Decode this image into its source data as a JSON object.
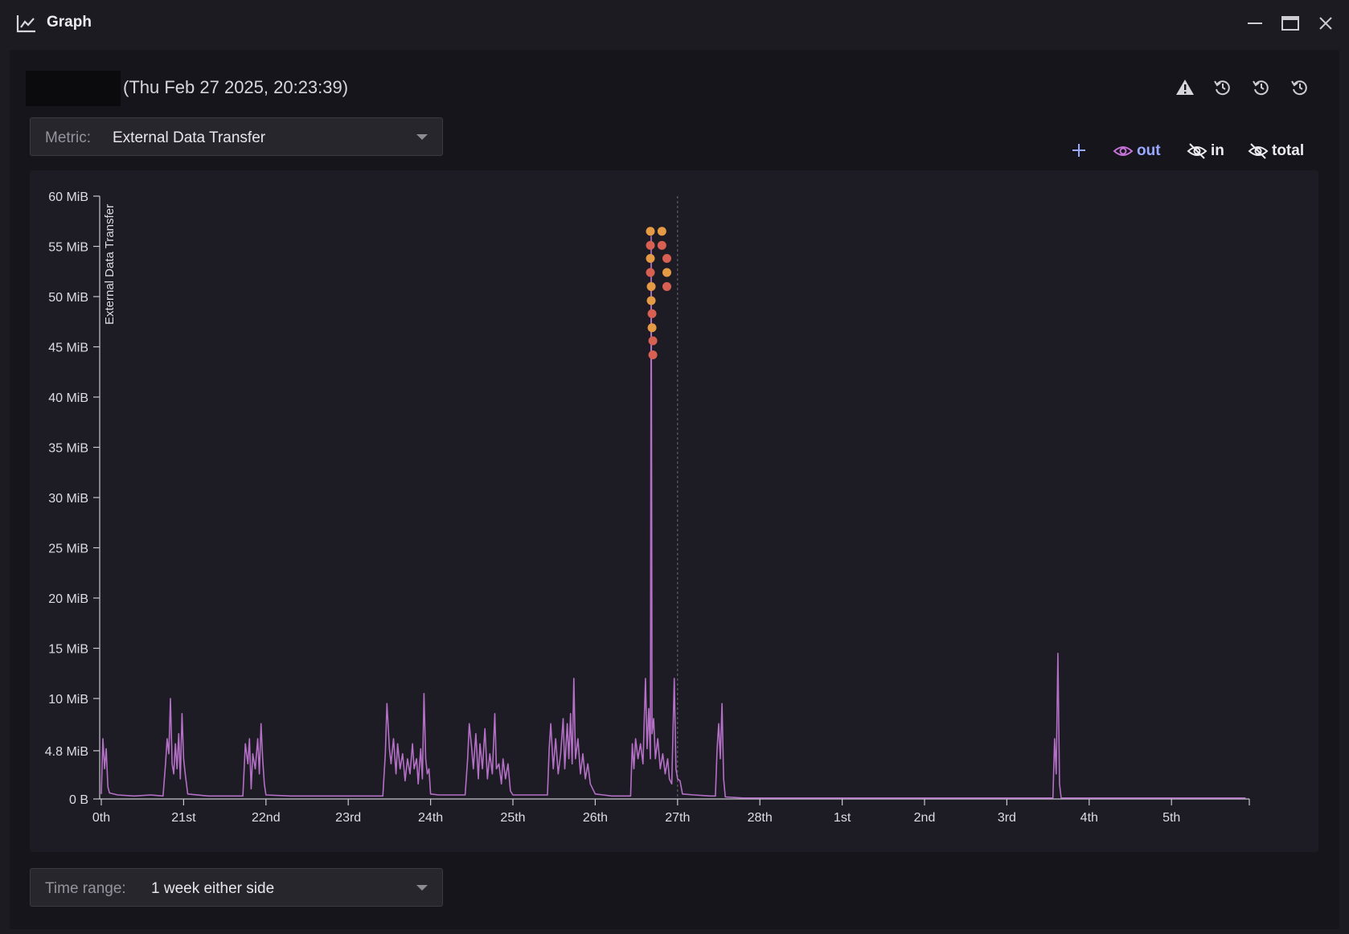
{
  "window": {
    "title": "Graph",
    "icon": "line-chart-icon",
    "controls": [
      "minimize-icon",
      "maximize-icon",
      "close-icon"
    ]
  },
  "header": {
    "timestamp": "(Thu Feb 27 2025, 20:23:39)",
    "icons": [
      "warning-icon",
      "history-icon",
      "history-icon",
      "history-icon"
    ]
  },
  "metric_select": {
    "label": "Metric:",
    "value": "External Data Transfer"
  },
  "legend": {
    "add_icon": "plus-icon",
    "items": [
      {
        "label": "out",
        "visible": true,
        "color": "#9aa8ff",
        "icon": "eye-icon"
      },
      {
        "label": "in",
        "visible": false,
        "color": "#ecebf0",
        "icon": "eye-off-icon"
      },
      {
        "label": "total",
        "visible": false,
        "color": "#ecebf0",
        "icon": "eye-off-icon"
      }
    ]
  },
  "time_range_select": {
    "label": "Time range:",
    "value": "1 week either side"
  },
  "colors": {
    "series": "#b46fc6",
    "marker_orange": "#e59a45",
    "marker_red": "#d86052",
    "axis": "#c9c7cf",
    "background": "#1d1c24"
  },
  "chart_data": {
    "type": "line",
    "ylabel": "External Data Transfer",
    "xlabel": "",
    "y_ticks": [
      {
        "value": 0,
        "label": "0 B"
      },
      {
        "value": 4.8,
        "label": "4.8 MiB"
      },
      {
        "value": 10,
        "label": "10 MiB"
      },
      {
        "value": 15,
        "label": "15 MiB"
      },
      {
        "value": 20,
        "label": "20 MiB"
      },
      {
        "value": 25,
        "label": "25 MiB"
      },
      {
        "value": 30,
        "label": "30 MiB"
      },
      {
        "value": 35,
        "label": "35 MiB"
      },
      {
        "value": 40,
        "label": "40 MiB"
      },
      {
        "value": 45,
        "label": "45 MiB"
      },
      {
        "value": 50,
        "label": "50 MiB"
      },
      {
        "value": 55,
        "label": "55 MiB"
      },
      {
        "value": 60,
        "label": "60 MiB"
      }
    ],
    "ylim": [
      0,
      60
    ],
    "x_ticks": [
      {
        "day": 20,
        "label": "0th"
      },
      {
        "day": 21,
        "label": "21st"
      },
      {
        "day": 22,
        "label": "22nd"
      },
      {
        "day": 23,
        "label": "23rd"
      },
      {
        "day": 24,
        "label": "24th"
      },
      {
        "day": 25,
        "label": "25th"
      },
      {
        "day": 26,
        "label": "26th"
      },
      {
        "day": 27,
        "label": "27th"
      },
      {
        "day": 28,
        "label": "28th"
      },
      {
        "day": 29,
        "label": "1st"
      },
      {
        "day": 30,
        "label": "2nd"
      },
      {
        "day": 31,
        "label": "3rd"
      },
      {
        "day": 32,
        "label": "4th"
      },
      {
        "day": 33,
        "label": "5th"
      }
    ],
    "xlim": [
      20,
      33.9
    ],
    "cursor_day": 27.0,
    "grid": false,
    "series": [
      {
        "name": "out",
        "points": [
          [
            20.0,
            0.5
          ],
          [
            20.02,
            6.0
          ],
          [
            20.04,
            3.0
          ],
          [
            20.06,
            5.0
          ],
          [
            20.08,
            1.2
          ],
          [
            20.1,
            0.6
          ],
          [
            20.2,
            0.4
          ],
          [
            20.4,
            0.3
          ],
          [
            20.6,
            0.4
          ],
          [
            20.75,
            0.3
          ],
          [
            20.78,
            3.5
          ],
          [
            20.8,
            6.0
          ],
          [
            20.82,
            4.5
          ],
          [
            20.84,
            10.0
          ],
          [
            20.86,
            3.5
          ],
          [
            20.88,
            2.5
          ],
          [
            20.9,
            5.5
          ],
          [
            20.92,
            3.0
          ],
          [
            20.94,
            6.5
          ],
          [
            20.96,
            2.0
          ],
          [
            20.98,
            8.5
          ],
          [
            21.0,
            4.0
          ],
          [
            21.02,
            2.5
          ],
          [
            21.05,
            0.5
          ],
          [
            21.3,
            0.3
          ],
          [
            21.5,
            0.3
          ],
          [
            21.72,
            0.3
          ],
          [
            21.75,
            5.5
          ],
          [
            21.78,
            3.5
          ],
          [
            21.8,
            6.0
          ],
          [
            21.82,
            1.0
          ],
          [
            21.84,
            4.5
          ],
          [
            21.87,
            3.0
          ],
          [
            21.9,
            6.0
          ],
          [
            21.92,
            2.5
          ],
          [
            21.94,
            7.5
          ],
          [
            21.96,
            4.0
          ],
          [
            21.98,
            1.5
          ],
          [
            22.0,
            0.4
          ],
          [
            22.3,
            0.3
          ],
          [
            22.6,
            0.3
          ],
          [
            22.9,
            0.3
          ],
          [
            23.2,
            0.3
          ],
          [
            23.42,
            0.3
          ],
          [
            23.45,
            4.5
          ],
          [
            23.47,
            9.5
          ],
          [
            23.5,
            5.0
          ],
          [
            23.52,
            3.5
          ],
          [
            23.55,
            6.0
          ],
          [
            23.58,
            2.5
          ],
          [
            23.6,
            5.5
          ],
          [
            23.63,
            3.0
          ],
          [
            23.66,
            4.5
          ],
          [
            23.69,
            1.8
          ],
          [
            23.72,
            4.0
          ],
          [
            23.75,
            2.5
          ],
          [
            23.78,
            5.5
          ],
          [
            23.8,
            3.0
          ],
          [
            23.83,
            4.0
          ],
          [
            23.85,
            1.5
          ],
          [
            23.88,
            5.0
          ],
          [
            23.9,
            2.0
          ],
          [
            23.92,
            10.5
          ],
          [
            23.94,
            4.0
          ],
          [
            23.96,
            2.5
          ],
          [
            23.98,
            3.0
          ],
          [
            24.0,
            0.5
          ],
          [
            24.1,
            0.4
          ],
          [
            24.3,
            0.4
          ],
          [
            24.42,
            0.4
          ],
          [
            24.45,
            4.0
          ],
          [
            24.47,
            7.5
          ],
          [
            24.5,
            5.0
          ],
          [
            24.52,
            3.0
          ],
          [
            24.55,
            6.5
          ],
          [
            24.58,
            2.0
          ],
          [
            24.6,
            5.5
          ],
          [
            24.63,
            3.0
          ],
          [
            24.66,
            7.0
          ],
          [
            24.69,
            2.0
          ],
          [
            24.72,
            4.5
          ],
          [
            24.75,
            2.5
          ],
          [
            24.78,
            8.5
          ],
          [
            24.8,
            3.0
          ],
          [
            24.83,
            3.5
          ],
          [
            24.86,
            1.5
          ],
          [
            24.88,
            4.0
          ],
          [
            24.91,
            2.0
          ],
          [
            24.94,
            3.5
          ],
          [
            24.97,
            0.8
          ],
          [
            25.0,
            0.4
          ],
          [
            25.2,
            0.4
          ],
          [
            25.42,
            0.4
          ],
          [
            25.44,
            5.0
          ],
          [
            25.46,
            7.5
          ],
          [
            25.49,
            3.0
          ],
          [
            25.52,
            6.0
          ],
          [
            25.55,
            2.5
          ],
          [
            25.58,
            4.5
          ],
          [
            25.61,
            8.0
          ],
          [
            25.63,
            3.0
          ],
          [
            25.66,
            7.5
          ],
          [
            25.68,
            4.0
          ],
          [
            25.7,
            8.5
          ],
          [
            25.72,
            3.5
          ],
          [
            25.74,
            12.0
          ],
          [
            25.76,
            4.0
          ],
          [
            25.79,
            6.0
          ],
          [
            25.82,
            2.5
          ],
          [
            25.85,
            4.5
          ],
          [
            25.88,
            2.0
          ],
          [
            25.91,
            3.5
          ],
          [
            25.94,
            1.5
          ],
          [
            26.0,
            0.5
          ],
          [
            26.1,
            0.4
          ],
          [
            26.2,
            0.3
          ],
          [
            26.35,
            0.3
          ],
          [
            26.43,
            0.3
          ],
          [
            26.45,
            5.5
          ],
          [
            26.47,
            3.0
          ],
          [
            26.49,
            6.0
          ],
          [
            26.52,
            4.0
          ],
          [
            26.55,
            5.5
          ],
          [
            26.58,
            3.5
          ],
          [
            26.61,
            12.0
          ],
          [
            26.63,
            5.0
          ],
          [
            26.65,
            9.0
          ],
          [
            26.67,
            4.0
          ],
          [
            26.68,
            56.0
          ],
          [
            26.69,
            6.5
          ],
          [
            26.71,
            8.0
          ],
          [
            26.73,
            4.0
          ],
          [
            26.76,
            6.0
          ],
          [
            26.79,
            3.0
          ],
          [
            26.82,
            4.5
          ],
          [
            26.85,
            2.5
          ],
          [
            26.88,
            4.0
          ],
          [
            26.9,
            2.0
          ],
          [
            26.93,
            1.5
          ],
          [
            26.96,
            12.0
          ],
          [
            26.98,
            3.0
          ],
          [
            27.0,
            2.0
          ],
          [
            27.03,
            1.8
          ],
          [
            27.06,
            0.5
          ],
          [
            27.2,
            0.4
          ],
          [
            27.4,
            0.3
          ],
          [
            27.46,
            0.3
          ],
          [
            27.48,
            5.0
          ],
          [
            27.5,
            7.5
          ],
          [
            27.52,
            4.0
          ],
          [
            27.54,
            9.5
          ],
          [
            27.56,
            2.0
          ],
          [
            27.58,
            0.2
          ],
          [
            27.8,
            0.1
          ],
          [
            28.3,
            0.1
          ],
          [
            28.9,
            0.1
          ],
          [
            29.5,
            0.1
          ],
          [
            30.1,
            0.1
          ],
          [
            30.7,
            0.1
          ],
          [
            31.2,
            0.1
          ],
          [
            31.56,
            0.1
          ],
          [
            31.58,
            6.0
          ],
          [
            31.6,
            2.5
          ],
          [
            31.62,
            14.5
          ],
          [
            31.64,
            1.5
          ],
          [
            31.66,
            0.1
          ],
          [
            32.2,
            0.1
          ],
          [
            32.9,
            0.1
          ],
          [
            33.5,
            0.1
          ],
          [
            33.9,
            0.1
          ]
        ]
      }
    ],
    "markers": [
      {
        "day": 26.67,
        "value": 56.5,
        "color": "orange"
      },
      {
        "day": 26.67,
        "value": 55.1,
        "color": "red"
      },
      {
        "day": 26.67,
        "value": 53.8,
        "color": "orange"
      },
      {
        "day": 26.67,
        "value": 52.4,
        "color": "red"
      },
      {
        "day": 26.68,
        "value": 51.0,
        "color": "orange"
      },
      {
        "day": 26.68,
        "value": 49.6,
        "color": "orange"
      },
      {
        "day": 26.69,
        "value": 48.3,
        "color": "red"
      },
      {
        "day": 26.69,
        "value": 46.9,
        "color": "orange"
      },
      {
        "day": 26.7,
        "value": 45.6,
        "color": "red"
      },
      {
        "day": 26.7,
        "value": 44.2,
        "color": "red"
      },
      {
        "day": 26.81,
        "value": 56.5,
        "color": "orange"
      },
      {
        "day": 26.81,
        "value": 55.1,
        "color": "red"
      },
      {
        "day": 26.87,
        "value": 53.8,
        "color": "red"
      },
      {
        "day": 26.87,
        "value": 52.4,
        "color": "orange"
      },
      {
        "day": 26.87,
        "value": 51.0,
        "color": "red"
      }
    ]
  }
}
